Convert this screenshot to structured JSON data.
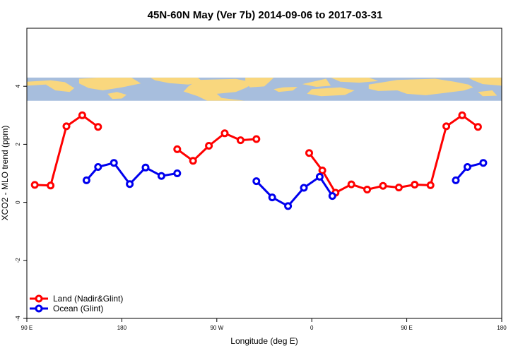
{
  "chart_data": {
    "type": "line",
    "title": "45N-60N May (Ver 7b)   2014-09-06 to 2017-03-31",
    "xlabel": "Longitude (deg E)",
    "ylabel": "XCO2 - MLO trend (ppm)",
    "xlim": [
      90,
      540
    ],
    "ylim": [
      -4,
      6
    ],
    "x_ticks": [
      {
        "value": 90,
        "label": "90 E"
      },
      {
        "value": 180,
        "label": "180"
      },
      {
        "value": 270,
        "label": "90 W"
      },
      {
        "value": 360,
        "label": "0"
      },
      {
        "value": 450,
        "label": "90 E"
      },
      {
        "value": 540,
        "label": "180"
      }
    ],
    "y_ticks": [
      {
        "value": -4,
        "label": "-4"
      },
      {
        "value": -2,
        "label": "-2"
      },
      {
        "value": 0,
        "label": "0"
      },
      {
        "value": 2,
        "label": "2"
      },
      {
        "value": 4,
        "label": "4"
      }
    ],
    "map_band": {
      "y_range": [
        3.5,
        4.3
      ],
      "land_color": "#f9d77e",
      "ocean_color": "#a7bedd"
    },
    "legend": {
      "position": "bottom-left"
    },
    "series": [
      {
        "name": "Land (Nadir&Glint)",
        "color": "#ff0000",
        "segments": [
          [
            [
              97.5,
              0.6
            ],
            [
              112.5,
              0.58
            ],
            [
              127.5,
              2.62
            ],
            [
              142.5,
              3.0
            ],
            [
              157.5,
              2.6
            ]
          ],
          [
            [
              232.5,
              1.83
            ],
            [
              247.5,
              1.43
            ],
            [
              262.5,
              1.95
            ],
            [
              277.5,
              2.38
            ],
            [
              292.5,
              2.14
            ],
            [
              307.5,
              2.18
            ]
          ],
          [
            [
              357.5,
              1.7
            ],
            [
              370,
              1.1
            ],
            [
              382.5,
              0.33
            ],
            [
              397.5,
              0.62
            ],
            [
              412.5,
              0.44
            ],
            [
              427.5,
              0.57
            ],
            [
              442.5,
              0.51
            ],
            [
              457.5,
              0.61
            ],
            [
              472.5,
              0.59
            ],
            [
              487.5,
              2.62
            ],
            [
              502.5,
              3.0
            ],
            [
              517.5,
              2.6
            ]
          ]
        ]
      },
      {
        "name": "Ocean (Glint)",
        "color": "#0000ee",
        "segments": [
          [
            [
              146.5,
              0.76
            ],
            [
              157.5,
              1.22
            ],
            [
              172.5,
              1.36
            ],
            [
              187.5,
              0.63
            ],
            [
              202.5,
              1.2
            ],
            [
              217.5,
              0.91
            ],
            [
              232.5,
              1.0
            ]
          ],
          [
            [
              307.5,
              0.73
            ],
            [
              322.5,
              0.17
            ],
            [
              337.5,
              -0.13
            ],
            [
              352.5,
              0.5
            ],
            [
              367.5,
              0.88
            ],
            [
              379.5,
              0.22
            ]
          ],
          [
            [
              496.5,
              0.76
            ],
            [
              507.5,
              1.22
            ],
            [
              522.5,
              1.36
            ]
          ]
        ]
      }
    ]
  }
}
